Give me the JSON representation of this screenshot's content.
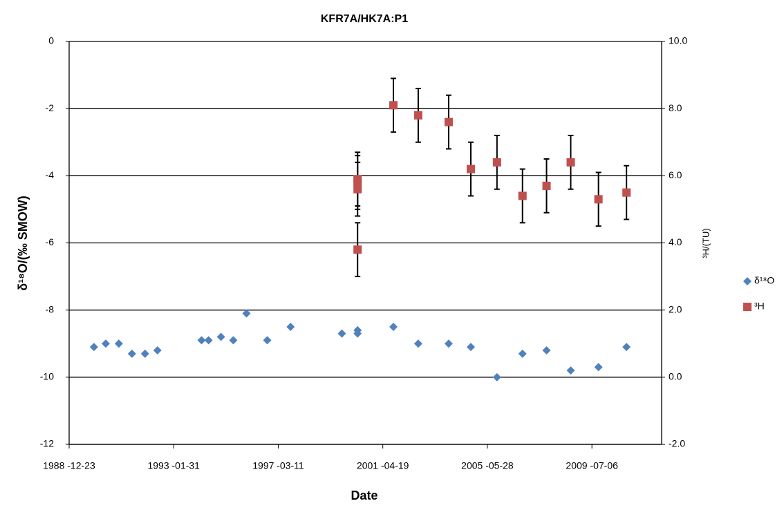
{
  "chart_data": {
    "type": "scatter",
    "title": "KFR7A/HK7A:P1",
    "x_label": "Date",
    "y_label": "δ¹⁸O/(‰ SMOW)",
    "y2_label": "³H/(TU)",
    "xlim": [
      "1988-12-23",
      "2012-04-01"
    ],
    "xticks": [
      {
        "value": "1988-12-23",
        "label": "1988 -12-23"
      },
      {
        "value": "1993-01-31",
        "label": "1993 -01-31"
      },
      {
        "value": "1997-03-11",
        "label": "1997 -03-11"
      },
      {
        "value": "2001-04-19",
        "label": "2001 -04-19"
      },
      {
        "value": "2005-05-28",
        "label": "2005 -05-28"
      },
      {
        "value": "2009-07-06",
        "label": "2009 -07-06"
      }
    ],
    "ylim": [
      -12,
      0
    ],
    "yticks": [
      0,
      -2,
      -4,
      -6,
      -8,
      -10,
      -12
    ],
    "y2lim": [
      -2,
      10
    ],
    "y2ticks": [
      {
        "value": 10,
        "label": "10.0"
      },
      {
        "value": 8,
        "label": "8.0"
      },
      {
        "value": 6,
        "label": "6.0"
      },
      {
        "value": 4,
        "label": "4.0"
      },
      {
        "value": 2,
        "label": "2.0"
      },
      {
        "value": 0,
        "label": "0.0"
      },
      {
        "value": -2,
        "label": "-2.0"
      }
    ],
    "grid": true,
    "legend": "right",
    "series": [
      {
        "name": "δ¹⁸O",
        "color": "#4f81bd",
        "marker": "diamond",
        "x": [
          "1989-12-14",
          "1990-06-01",
          "1990-12-06",
          "1991-06-12",
          "1991-12-17",
          "1992-06-12",
          "1994-03-07",
          "1994-06-15",
          "1994-12-10",
          "1995-06-05",
          "1995-12-11",
          "1996-10-04",
          "1997-09-04",
          "1999-09-10",
          "2000-04-22",
          "2000-04-22",
          "2001-09-18",
          "2002-09-09",
          "2003-11-20",
          "2004-10-03",
          "2005-10-13",
          "2006-10-14",
          "2007-09-24",
          "2008-09-05",
          "2009-10-08",
          "2010-11-14"
        ],
        "values": [
          -9.1,
          -9.0,
          -9.0,
          -9.3,
          -9.3,
          -9.2,
          -8.9,
          -8.9,
          -8.8,
          -8.9,
          -8.1,
          -8.9,
          -8.5,
          -8.7,
          -8.6,
          -8.7,
          -8.5,
          -9.0,
          -9.0,
          -9.1,
          -10.0,
          -9.3,
          -9.2,
          -9.8,
          -9.7,
          -9.1
        ]
      },
      {
        "name": "³H",
        "color": "#c0504d",
        "marker": "square",
        "axis": "y2",
        "x": [
          "2000-04-22",
          "2000-04-22",
          "2000-04-22",
          "2000-04-22",
          "2001-09-18",
          "2002-09-09",
          "2003-11-20",
          "2004-10-03",
          "2005-10-13",
          "2006-10-14",
          "2007-09-24",
          "2008-09-05",
          "2009-10-08",
          "2010-11-14"
        ],
        "values": [
          5.9,
          5.8,
          5.6,
          3.8,
          8.1,
          7.8,
          7.6,
          6.2,
          6.4,
          5.4,
          5.7,
          6.4,
          5.3,
          5.5
        ],
        "errors": [
          0.8,
          0.8,
          0.8,
          0.8,
          0.8,
          0.8,
          0.8,
          0.8,
          0.8,
          0.8,
          0.8,
          0.8,
          0.8,
          0.8
        ]
      }
    ]
  }
}
